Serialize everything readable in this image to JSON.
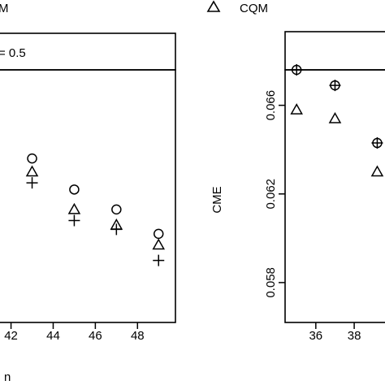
{
  "legend": {
    "fragment_label": "M",
    "items": [
      {
        "symbol": "triangle",
        "label": "CQM"
      }
    ]
  },
  "chart_data": [
    {
      "type": "scatter",
      "panel": "left",
      "strip_label": "= 0.5",
      "xlabel": "n",
      "ylabel": "",
      "xlim": [
        41.4,
        49.8
      ],
      "ylim": [
        0.0562,
        0.0676
      ],
      "xticks": [
        42,
        44,
        46,
        48
      ],
      "xtick_labels": [
        "42",
        "44",
        "46",
        "48"
      ],
      "series": [
        {
          "symbol": "circle",
          "x": [
            43,
            45,
            47,
            49
          ],
          "y": [
            0.0636,
            0.0622,
            0.0613,
            0.0602
          ]
        },
        {
          "symbol": "triangle",
          "x": [
            43,
            45,
            47,
            49
          ],
          "y": [
            0.063,
            0.0613,
            0.0606,
            0.0597
          ]
        },
        {
          "symbol": "plus",
          "x": [
            43,
            45,
            47,
            49
          ],
          "y": [
            0.0625,
            0.0608,
            0.0604,
            0.059
          ]
        }
      ]
    },
    {
      "type": "scatter",
      "panel": "right",
      "strip_label": "",
      "xlabel": "",
      "ylabel": "CME",
      "xlim": [
        34.4,
        39.9
      ],
      "ylim": [
        0.0562,
        0.0676
      ],
      "xticks": [
        36,
        38
      ],
      "xtick_labels": [
        "36",
        "38"
      ],
      "yticks": [
        0.058,
        0.062,
        0.066
      ],
      "ytick_labels": [
        "0.058",
        "0.062",
        "0.066"
      ],
      "series": [
        {
          "symbol": "circle",
          "x": [
            35,
            37,
            39.2
          ],
          "y": [
            0.0676,
            0.0669,
            0.0643
          ]
        },
        {
          "symbol": "triangle",
          "x": [
            35,
            37,
            39.2
          ],
          "y": [
            0.0658,
            0.0654,
            0.063
          ]
        },
        {
          "symbol": "plus",
          "x": [
            35,
            37,
            39.2
          ],
          "y": [
            0.0676,
            0.0669,
            0.0643
          ]
        }
      ]
    }
  ]
}
